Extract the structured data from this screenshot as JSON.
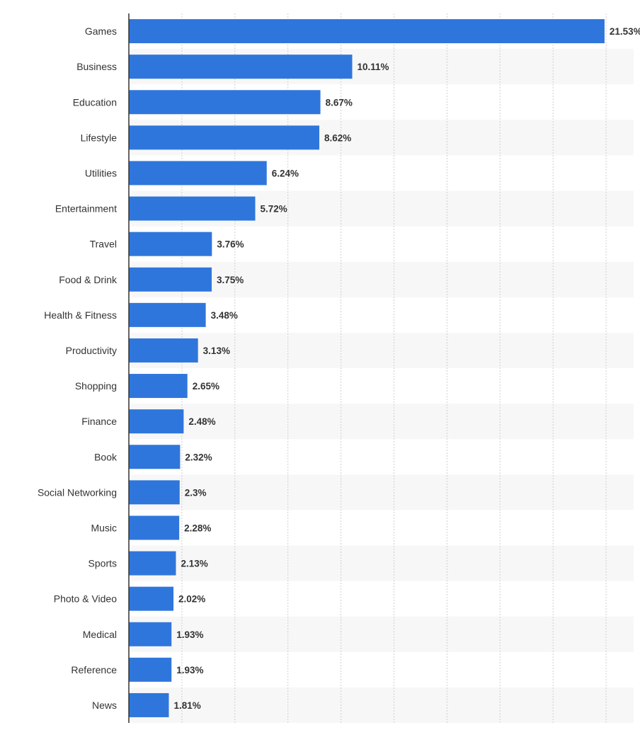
{
  "chart_data": {
    "type": "bar",
    "orientation": "horizontal",
    "categories": [
      "Games",
      "Business",
      "Education",
      "Lifestyle",
      "Utilities",
      "Entertainment",
      "Travel",
      "Food & Drink",
      "Health & Fitness",
      "Productivity",
      "Shopping",
      "Finance",
      "Book",
      "Social Networking",
      "Music",
      "Sports",
      "Photo & Video",
      "Medical",
      "Reference",
      "News"
    ],
    "values": [
      21.53,
      10.11,
      8.67,
      8.62,
      6.24,
      5.72,
      3.76,
      3.75,
      3.48,
      3.13,
      2.65,
      2.48,
      2.32,
      2.3,
      2.28,
      2.13,
      2.02,
      1.93,
      1.93,
      1.81
    ],
    "value_labels": [
      "21.53%",
      "10.11%",
      "8.67%",
      "8.62%",
      "6.24%",
      "5.72%",
      "3.76%",
      "3.75%",
      "3.48%",
      "3.13%",
      "2.65%",
      "2.48%",
      "2.32%",
      "2.3%",
      "2.28%",
      "2.13%",
      "2.02%",
      "1.93%",
      "1.93%",
      "1.81%"
    ],
    "title": "",
    "xlabel": "",
    "ylabel": "",
    "xlim": [
      0,
      24
    ],
    "grid": true,
    "legend": "none",
    "colors": {
      "bar": "#2f76dc",
      "grid": "#cfcfcf",
      "band": "#f7f7f7",
      "axis": "#333333",
      "text": "#333333"
    }
  }
}
